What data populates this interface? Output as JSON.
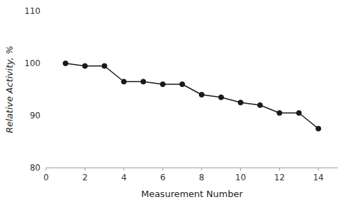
{
  "chart_data": {
    "type": "line",
    "xlabel": "Measurement Number",
    "ylabel": "Relative Activity, %",
    "x": [
      1,
      2,
      3,
      4,
      5,
      6,
      7,
      8,
      9,
      10,
      11,
      12,
      13,
      14
    ],
    "values": [
      100.0,
      99.5,
      99.5,
      96.5,
      96.5,
      96.0,
      96.0,
      94.0,
      93.5,
      92.5,
      92.0,
      90.5,
      90.5,
      87.5
    ],
    "color": "#1a1a1a",
    "marker": "circle",
    "xlim": [
      0,
      15
    ],
    "ylim": [
      80,
      110
    ],
    "xticks": [
      0,
      2,
      4,
      6,
      8,
      10,
      12,
      14
    ],
    "yticks": [
      80,
      90,
      100,
      110
    ],
    "grid": false
  }
}
